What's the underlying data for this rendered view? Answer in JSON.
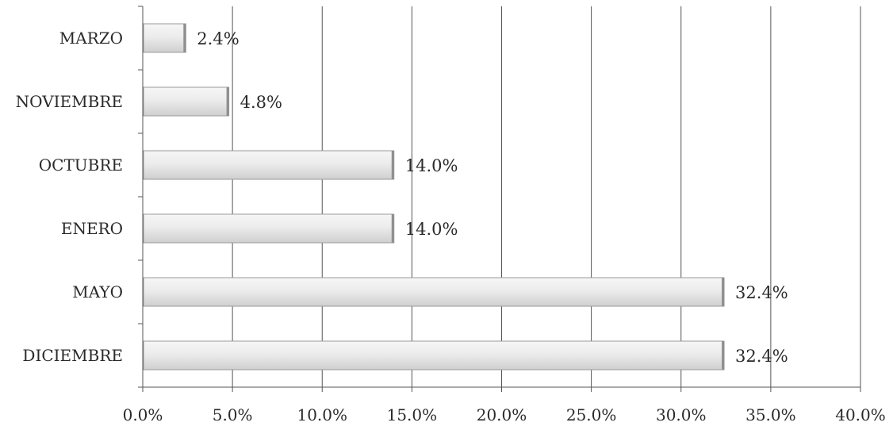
{
  "chart_data": {
    "type": "bar",
    "orientation": "horizontal",
    "categories": [
      "MARZO",
      "NOVIEMBRE",
      "OCTUBRE",
      "ENERO",
      "MAYO",
      "DICIEMBRE"
    ],
    "values": [
      2.4,
      4.8,
      14.0,
      14.0,
      32.4,
      32.4
    ],
    "data_labels": [
      "2.4%",
      "4.8%",
      "14.0%",
      "14.0%",
      "32.4%",
      "32.4%"
    ],
    "xlim": [
      0,
      40
    ],
    "x_ticks": [
      0,
      5,
      10,
      15,
      20,
      25,
      30,
      35,
      40
    ],
    "x_tick_labels": [
      "0.0%",
      "5.0%",
      "10.0%",
      "15.0%",
      "20.0%",
      "25.0%",
      "30.0%",
      "35.0%",
      "40.0%"
    ],
    "title": "",
    "xlabel": "",
    "ylabel": "",
    "grid": true,
    "legend": "none",
    "bar_color": "#e6e6e6",
    "bar_edge_color": "#9a9a9a",
    "grid_color": "#555555"
  }
}
